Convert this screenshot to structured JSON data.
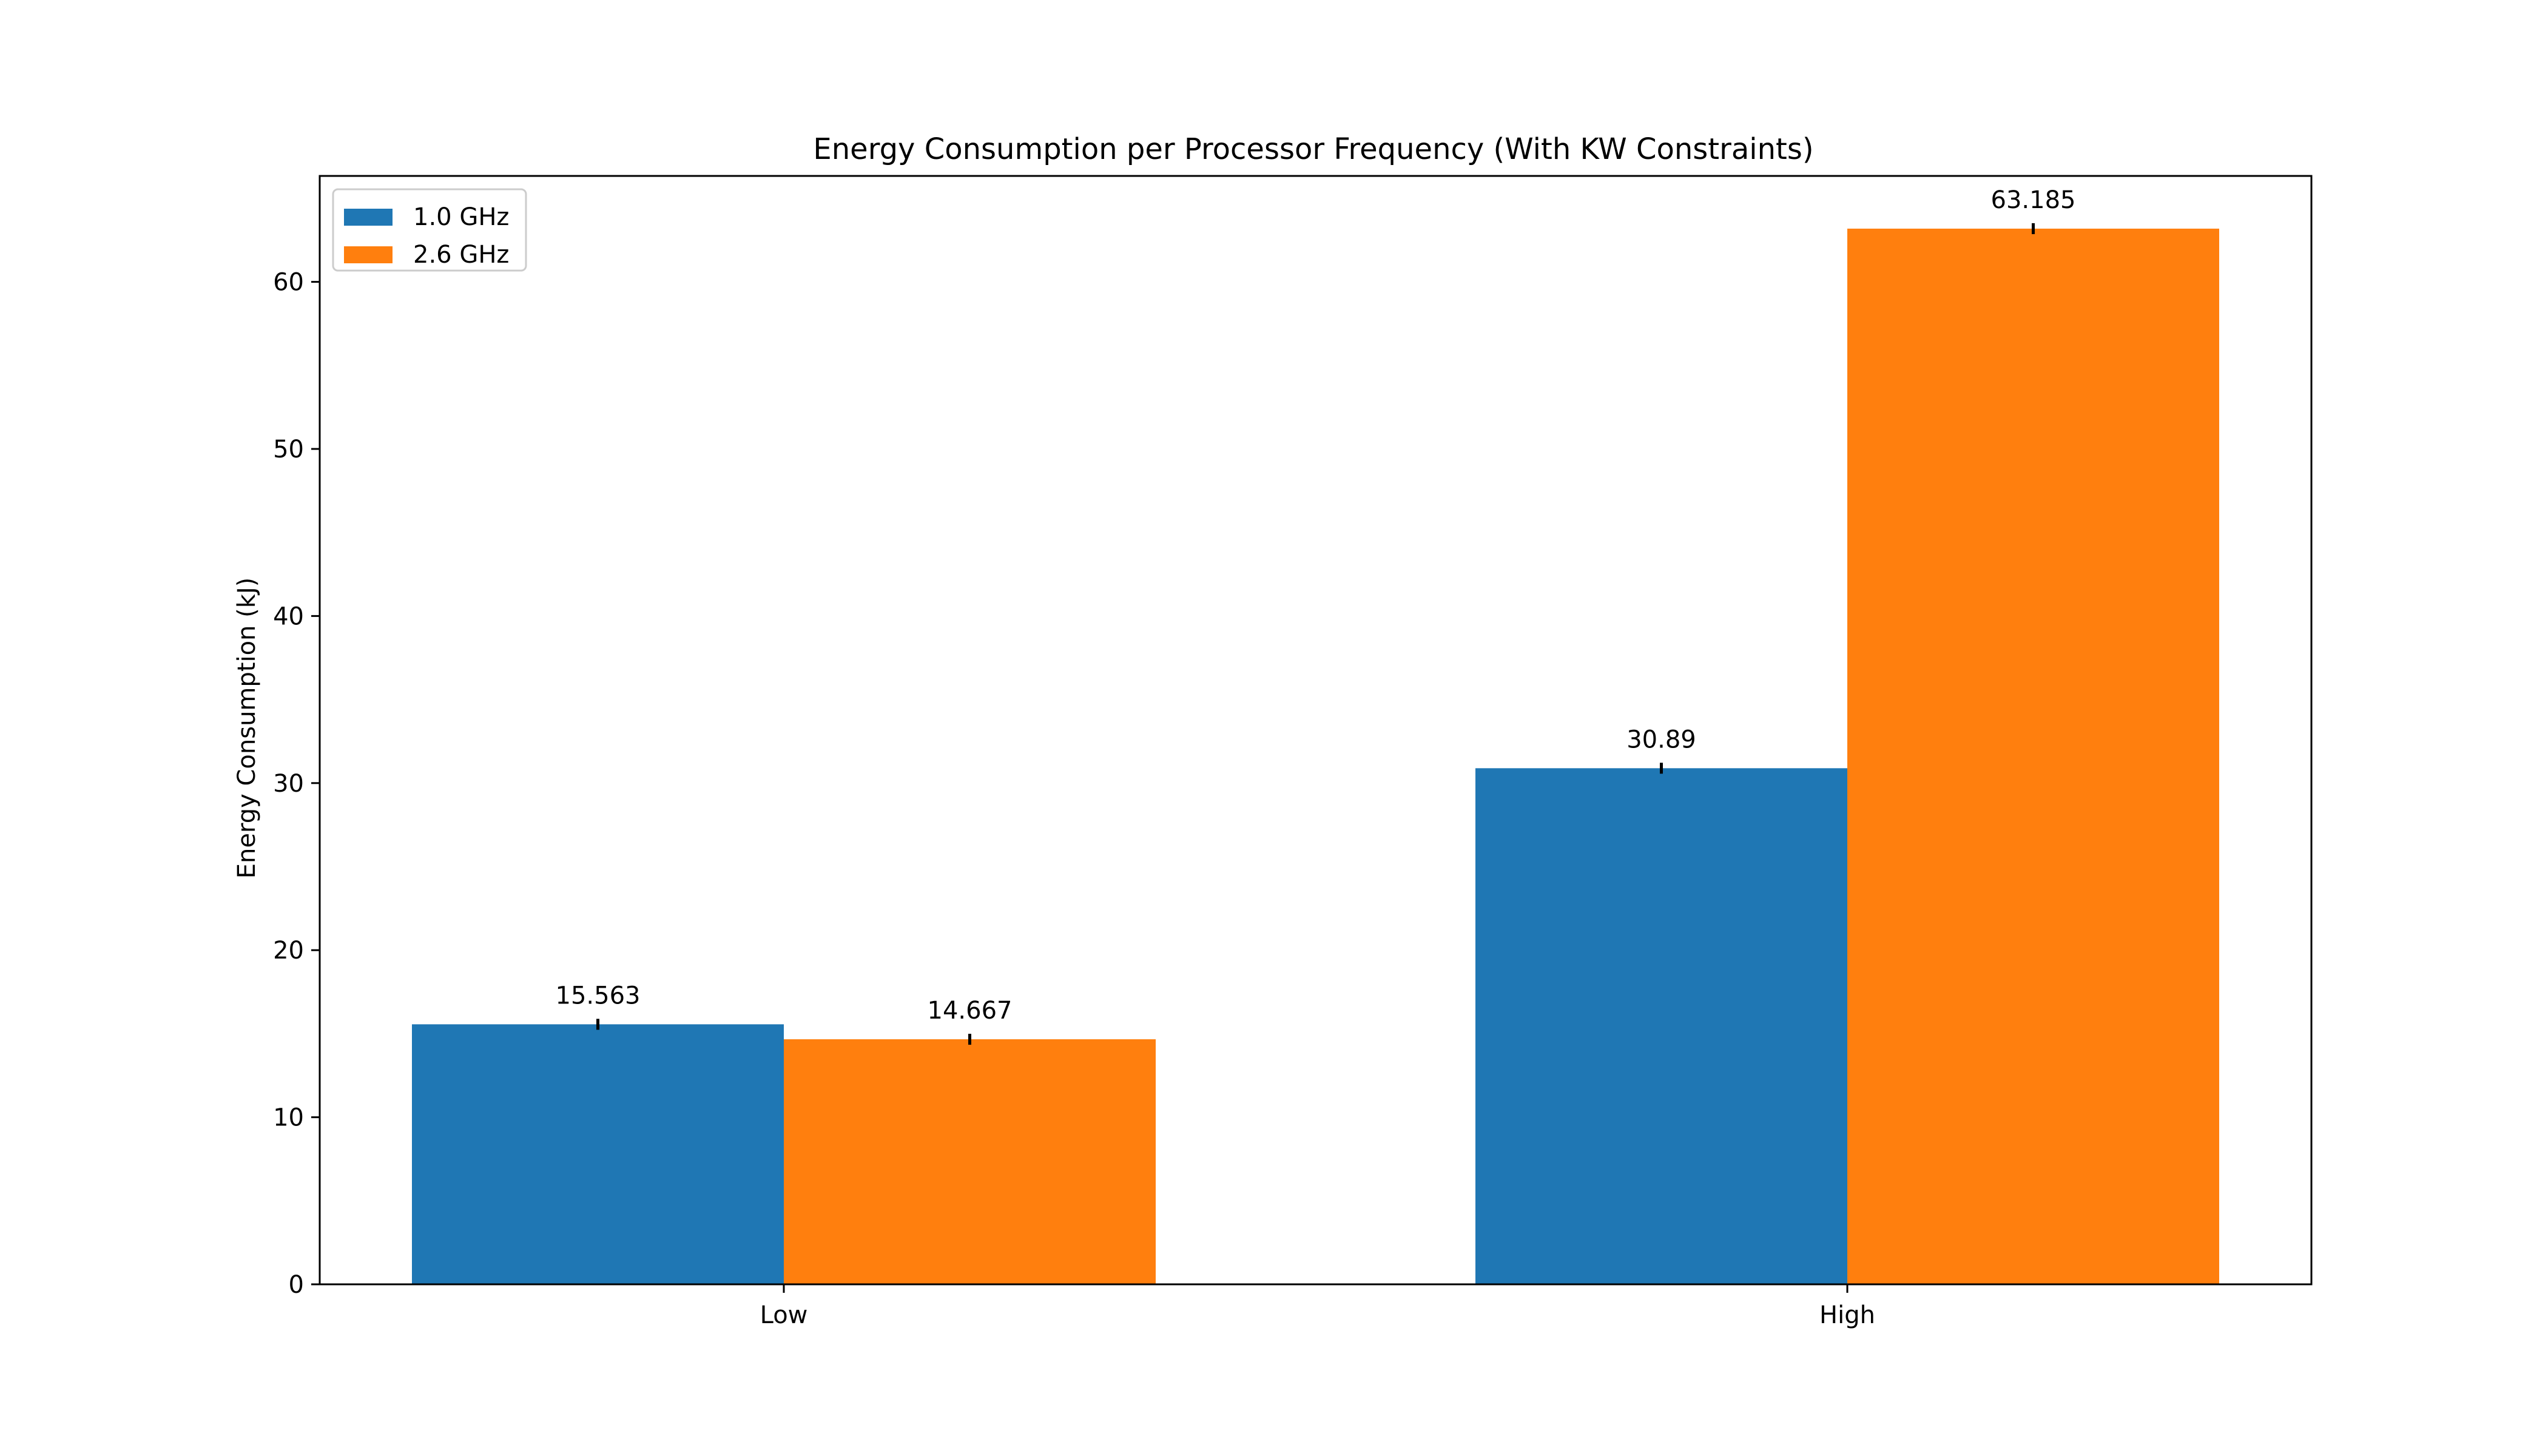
{
  "chart_data": {
    "type": "bar",
    "title": "Energy Consumption per Processor Frequency (With KW Constraints)",
    "xlabel": "",
    "ylabel": "Energy Consumption (kJ)",
    "categories": [
      "Low",
      "High"
    ],
    "series": [
      {
        "name": "1.0 GHz",
        "color": "#1f77b4",
        "values": [
          15.563,
          30.89
        ],
        "labels": [
          "15.563",
          "30.89"
        ]
      },
      {
        "name": "2.6 GHz",
        "color": "#ff7f0e",
        "values": [
          14.667,
          63.185
        ],
        "labels": [
          "14.667",
          "63.185"
        ]
      }
    ],
    "ylim": [
      0,
      66.34
    ],
    "yticks": [
      0,
      10,
      20,
      30,
      40,
      50,
      60
    ],
    "ytick_labels": [
      "0",
      "10",
      "20",
      "30",
      "40",
      "50",
      "60"
    ],
    "error_bars": true,
    "grid": false,
    "legend": "top-left"
  }
}
